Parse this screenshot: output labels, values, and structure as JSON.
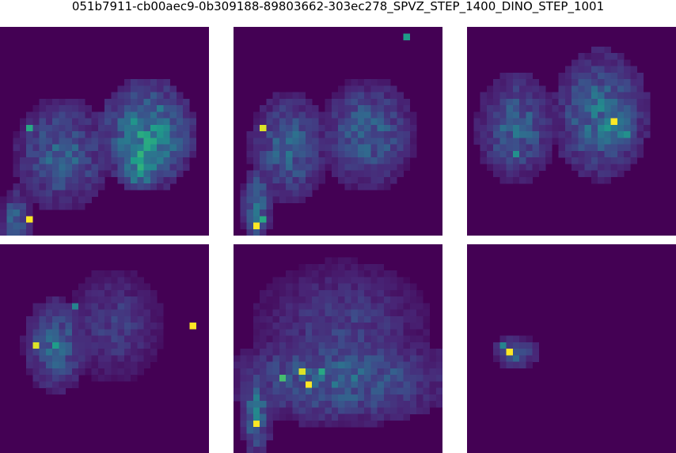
{
  "figure": {
    "title": "051b7911-cb00aec9-0b309188-89803662-303ec278_SPVZ_STEP_1400_DINO_STEP_1001",
    "grid_size": 32,
    "colormap": "viridis",
    "background_color": "#440154"
  },
  "panels": [
    {
      "name": "panel-1",
      "blobs": [
        {
          "cx": 9,
          "cy": 19,
          "rx": 6,
          "ry": 7,
          "v": 0.3
        },
        {
          "cx": 22,
          "cy": 16,
          "rx": 6,
          "ry": 7,
          "v": 0.45
        },
        {
          "cx": 21,
          "cy": 21,
          "rx": 3,
          "ry": 3,
          "v": 0.5
        },
        {
          "cx": 2,
          "cy": 29,
          "rx": 2,
          "ry": 4,
          "v": 0.3
        }
      ],
      "hot": [
        {
          "x": 4,
          "y": 29,
          "v": 1.0
        },
        {
          "x": 4,
          "y": 15,
          "v": 0.6
        },
        {
          "x": 21,
          "y": 19,
          "v": 0.65
        },
        {
          "x": 22,
          "y": 18,
          "v": 0.6
        }
      ]
    },
    {
      "name": "panel-2",
      "blobs": [
        {
          "cx": 8,
          "cy": 18,
          "rx": 5,
          "ry": 7,
          "v": 0.3
        },
        {
          "cx": 20,
          "cy": 16,
          "rx": 6,
          "ry": 7,
          "v": 0.3
        },
        {
          "cx": 3,
          "cy": 27,
          "rx": 2,
          "ry": 5,
          "v": 0.35
        }
      ],
      "hot": [
        {
          "x": 3,
          "y": 30,
          "v": 1.0
        },
        {
          "x": 4,
          "y": 15,
          "v": 0.95
        },
        {
          "x": 26,
          "y": 1,
          "v": 0.55
        },
        {
          "x": 4,
          "y": 29,
          "v": 0.6
        }
      ]
    },
    {
      "name": "panel-3",
      "blobs": [
        {
          "cx": 7,
          "cy": 15,
          "rx": 5,
          "ry": 7,
          "v": 0.3
        },
        {
          "cx": 20,
          "cy": 13,
          "rx": 6,
          "ry": 8,
          "v": 0.35
        },
        {
          "cx": 22,
          "cy": 15,
          "rx": 3,
          "ry": 3,
          "v": 0.45
        }
      ],
      "hot": [
        {
          "x": 22,
          "y": 14,
          "v": 1.0
        },
        {
          "x": 7,
          "y": 19,
          "v": 0.5
        },
        {
          "x": 24,
          "y": 16,
          "v": 0.5
        }
      ]
    },
    {
      "name": "panel-4",
      "blobs": [
        {
          "cx": 8,
          "cy": 15,
          "rx": 4,
          "ry": 6,
          "v": 0.3
        },
        {
          "cx": 17,
          "cy": 12,
          "rx": 6,
          "ry": 7,
          "v": 0.18
        }
      ],
      "hot": [
        {
          "x": 5,
          "y": 15,
          "v": 0.95
        },
        {
          "x": 29,
          "y": 12,
          "v": 1.0
        },
        {
          "x": 8,
          "y": 15,
          "v": 0.55
        },
        {
          "x": 11,
          "y": 9,
          "v": 0.45
        }
      ]
    },
    {
      "name": "panel-5",
      "blobs": [
        {
          "cx": 16,
          "cy": 20,
          "rx": 14,
          "ry": 6,
          "v": 0.3
        },
        {
          "cx": 16,
          "cy": 12,
          "rx": 11,
          "ry": 8,
          "v": 0.18
        },
        {
          "cx": 3,
          "cy": 25,
          "rx": 2,
          "ry": 6,
          "v": 0.35
        }
      ],
      "hot": [
        {
          "x": 3,
          "y": 27,
          "v": 1.0
        },
        {
          "x": 11,
          "y": 21,
          "v": 1.0
        },
        {
          "x": 10,
          "y": 19,
          "v": 0.95
        },
        {
          "x": 7,
          "y": 20,
          "v": 0.7
        },
        {
          "x": 13,
          "y": 19,
          "v": 0.6
        }
      ]
    },
    {
      "name": "panel-6",
      "blobs": [
        {
          "cx": 7,
          "cy": 16,
          "rx": 3,
          "ry": 2,
          "v": 0.3
        }
      ],
      "hot": [
        {
          "x": 6,
          "y": 16,
          "v": 1.0
        },
        {
          "x": 5,
          "y": 15,
          "v": 0.45
        }
      ]
    }
  ]
}
